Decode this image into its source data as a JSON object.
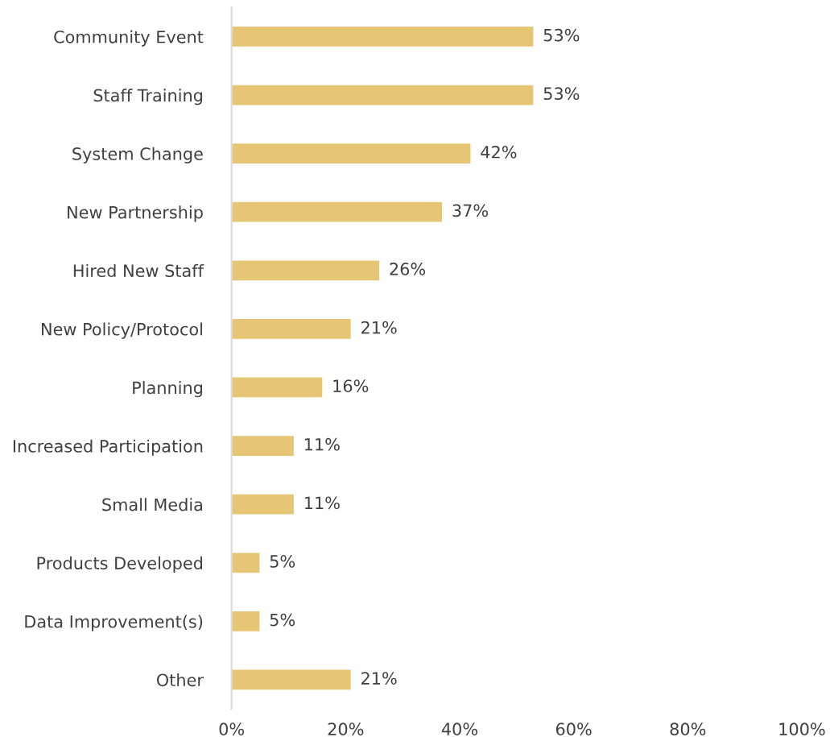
{
  "chart_data": {
    "type": "bar",
    "orientation": "horizontal",
    "categories": [
      "Community Event",
      "Staff Training",
      "System Change",
      "New Partnership",
      "Hired New Staff",
      "New Policy/Protocol",
      "Planning",
      "Increased Participation",
      "Small Media",
      "Products Developed",
      "Data Improvement(s)",
      "Other"
    ],
    "values": [
      53,
      53,
      42,
      37,
      26,
      21,
      16,
      11,
      11,
      5,
      5,
      21
    ],
    "value_labels": [
      "53%",
      "53%",
      "42%",
      "37%",
      "26%",
      "21%",
      "16%",
      "11%",
      "11%",
      "5%",
      "5%",
      "21%"
    ],
    "color": "#e6c675",
    "xlim": [
      0,
      100
    ],
    "xticks": [
      {
        "value": 0,
        "label": "0%"
      },
      {
        "value": 20,
        "label": "20%"
      },
      {
        "value": 40,
        "label": "40%"
      },
      {
        "value": 60,
        "label": "60%"
      },
      {
        "value": 80,
        "label": "80%"
      },
      {
        "value": 100,
        "label": "100%"
      }
    ],
    "grid": false,
    "legend": false
  }
}
